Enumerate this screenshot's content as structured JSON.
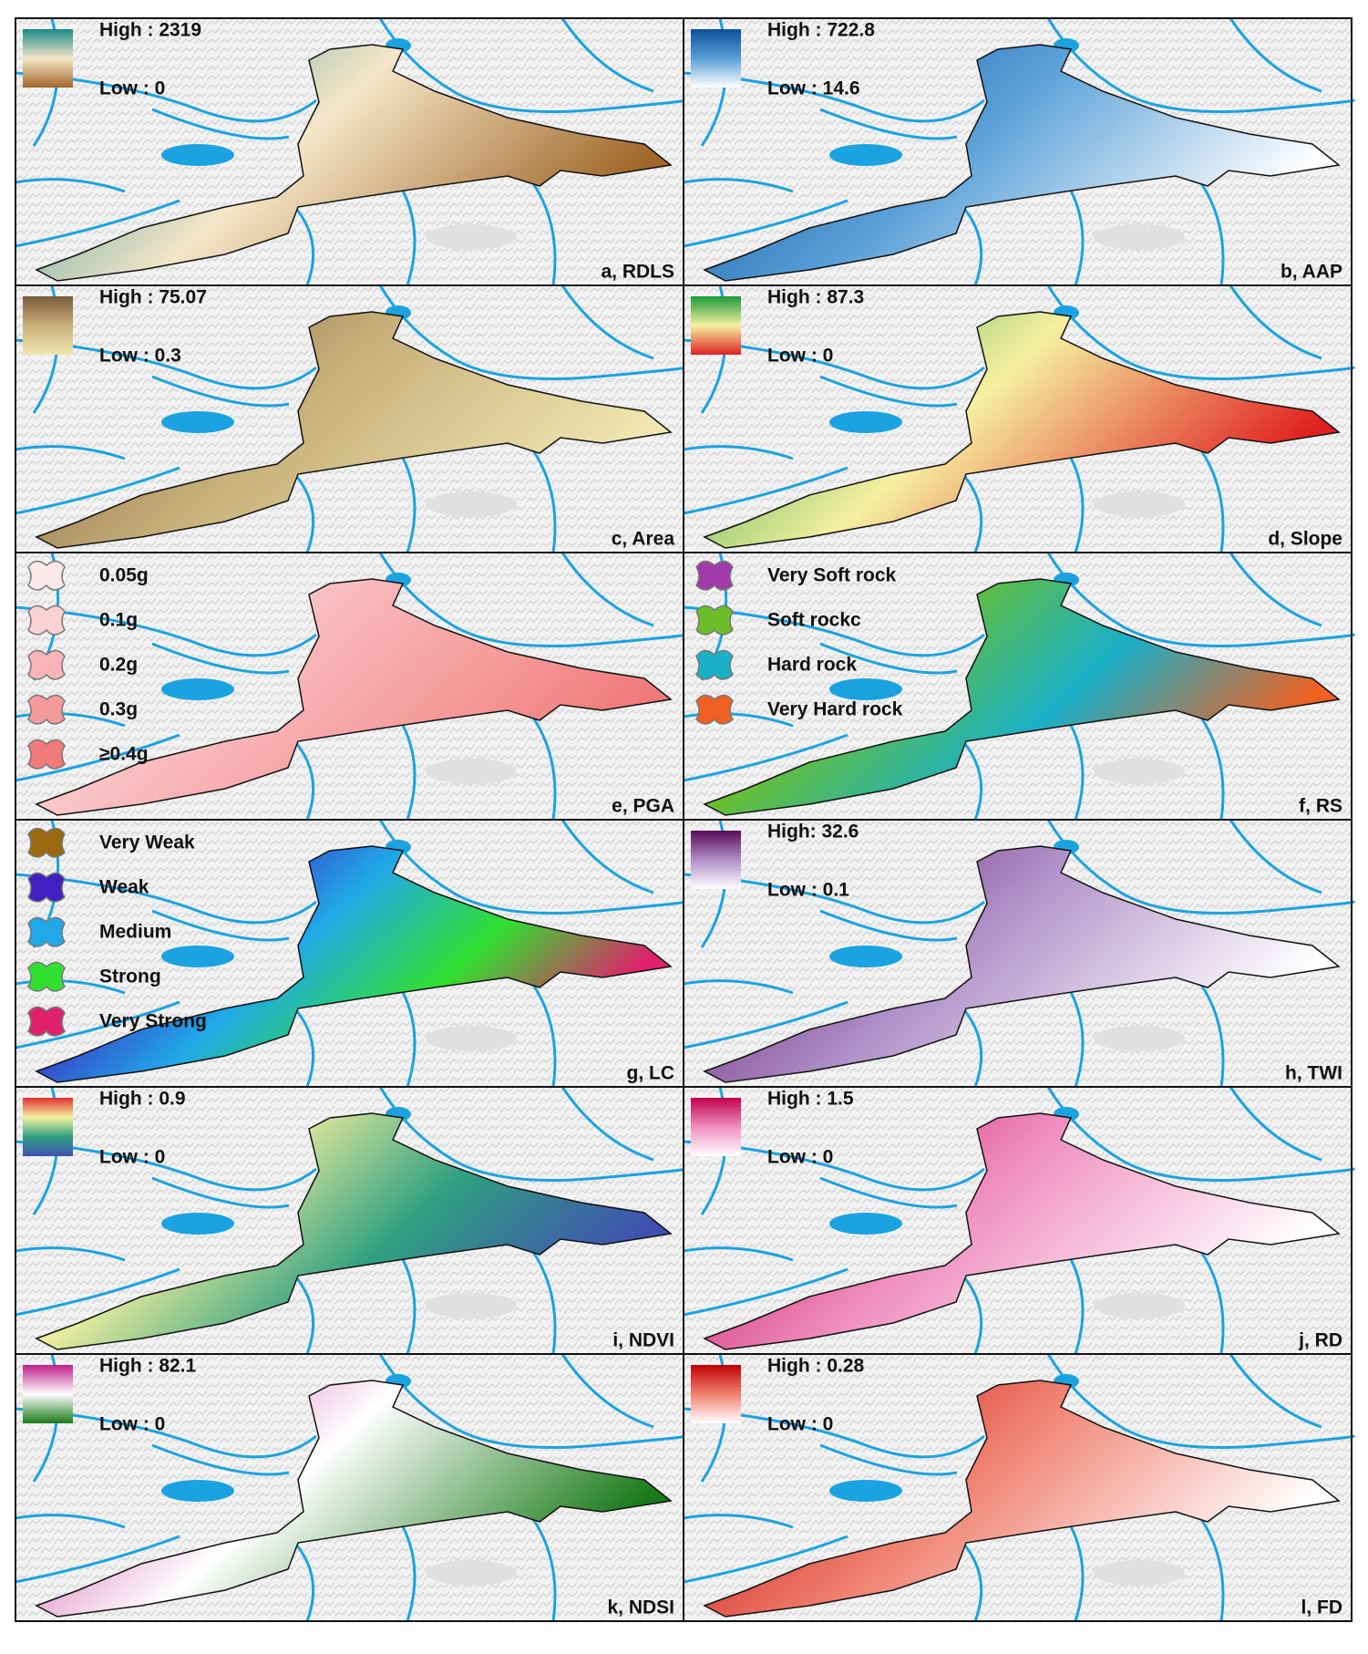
{
  "panels": [
    {
      "label": "a, RDLS",
      "high": "High : 2319",
      "low": "Low : 0",
      "colors": [
        "#1a8a8a",
        "#f5e6c8",
        "#a0672a"
      ]
    },
    {
      "label": "b, AAP",
      "high": "High : 722.8",
      "low": "Low : 14.6",
      "colors": [
        "#0b4f9c",
        "#5aa0d8",
        "#ffffff"
      ]
    },
    {
      "label": "c, Area",
      "high": "High : 75.07",
      "low": "Low : 0.3",
      "colors": [
        "#7a5a3a",
        "#c8b07a",
        "#f0e6b0"
      ]
    },
    {
      "label": "d, Slope",
      "high": "High : 87.3",
      "low": "Low : 0",
      "colors": [
        "#1a9a3a",
        "#f5f0a0",
        "#e02020"
      ]
    },
    {
      "label": "e, PGA",
      "items": [
        {
          "text": "0.05g",
          "color": "#fde8ea"
        },
        {
          "text": "0.1g",
          "color": "#fbd2d4"
        },
        {
          "text": "0.2g",
          "color": "#f8b4b6"
        },
        {
          "text": "0.3g",
          "color": "#f59a9a"
        },
        {
          "text": "≥0.4g",
          "color": "#f07a7a"
        }
      ]
    },
    {
      "label": "f, RS",
      "items": [
        {
          "text": "Very Soft rock",
          "color": "#a03aa8"
        },
        {
          "text": "Soft rockc",
          "color": "#6cbf2a"
        },
        {
          "text": "Hard rock",
          "color": "#1ab0c8"
        },
        {
          "text": "Very Hard rock",
          "color": "#f06020"
        }
      ]
    },
    {
      "label": "g, LC",
      "items": [
        {
          "text": "Very Weak",
          "color": "#9a6a10"
        },
        {
          "text": "Weak",
          "color": "#4020c0"
        },
        {
          "text": "Medium",
          "color": "#20a8e8"
        },
        {
          "text": "Strong",
          "color": "#30e030"
        },
        {
          "text": "Very Strong",
          "color": "#e0206a"
        }
      ]
    },
    {
      "label": "h, TWI",
      "high": "High: 32.6",
      "low": "Low : 0.1",
      "colors": [
        "#5a0a5a",
        "#b090c8",
        "#ffffff"
      ]
    },
    {
      "label": "i, NDVI",
      "high": "High : 0.9",
      "low": "Low : 0",
      "colors": [
        "#e03030",
        "#f5f0a0",
        "#30a080",
        "#4050b0"
      ]
    },
    {
      "label": "j, RD",
      "high": "High : 1.5",
      "low": "Low : 0",
      "colors": [
        "#c0004a",
        "#f090c0",
        "#ffffff"
      ]
    },
    {
      "label": "k, NDSI",
      "high": "High : 82.1",
      "low": "Low : 0",
      "colors": [
        "#c0208a",
        "#ffffff",
        "#1a7a1a"
      ]
    },
    {
      "label": "l, FD",
      "high": "High : 0.28",
      "low": "Low : 0",
      "colors": [
        "#c00000",
        "#f08070",
        "#ffffff"
      ]
    }
  ]
}
